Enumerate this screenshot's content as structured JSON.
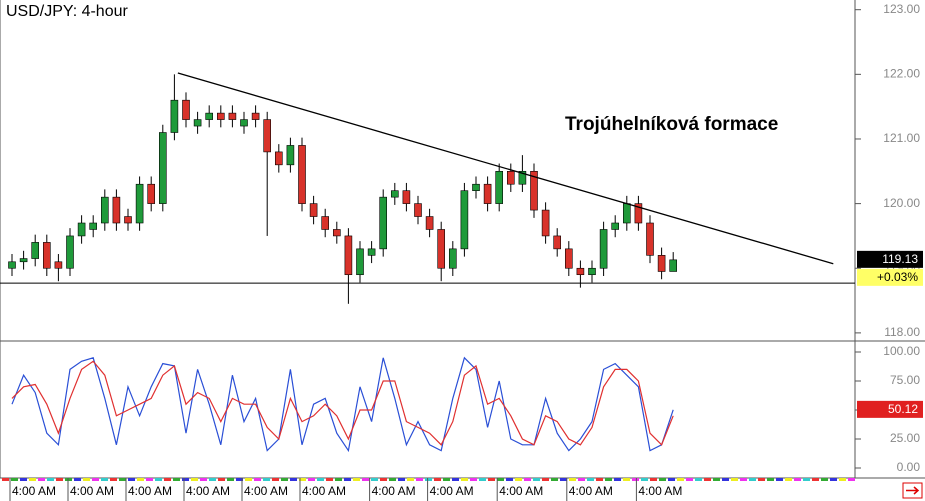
{
  "chart_data": [
    {
      "type": "candlestick",
      "title": "USD/JPY: 4-hour",
      "annotation": "Trojúhelníková formace",
      "categories": [
        "4:00 AM",
        null,
        null,
        null,
        null,
        "4:00 AM",
        null,
        null,
        null,
        null,
        "4:00 AM",
        null,
        null,
        null,
        null,
        "4:00 AM",
        null,
        null,
        null,
        null,
        "4:00 AM",
        null,
        null,
        null,
        null,
        "4:00 AM",
        null,
        null,
        null,
        null,
        null,
        "4:00 AM",
        null,
        null,
        null,
        null,
        "4:00 AM",
        null,
        null,
        null,
        null,
        null,
        "4:00 AM",
        null,
        null,
        null,
        null,
        null,
        "4:00 AM",
        null,
        null,
        null,
        null,
        null,
        "4:00 AM",
        null,
        null,
        null
      ],
      "open": [
        119.0,
        119.1,
        119.15,
        119.4,
        119.1,
        119.0,
        119.5,
        119.6,
        119.7,
        120.1,
        119.8,
        119.7,
        120.3,
        120.0,
        121.1,
        121.6,
        121.2,
        121.3,
        121.4,
        121.4,
        121.2,
        121.4,
        121.3,
        120.8,
        120.6,
        120.9,
        120.0,
        119.8,
        119.6,
        119.5,
        118.9,
        119.2,
        119.3,
        120.1,
        120.2,
        120.0,
        119.8,
        119.6,
        119.0,
        119.3,
        120.2,
        120.3,
        120.0,
        120.5,
        120.3,
        120.5,
        119.9,
        119.5,
        119.3,
        119.0,
        118.9,
        119.0,
        119.6,
        119.7,
        120.0,
        119.7,
        119.2,
        118.95
      ],
      "high": [
        119.22,
        119.27,
        119.52,
        119.52,
        119.22,
        119.62,
        119.82,
        119.82,
        120.22,
        120.22,
        119.92,
        120.42,
        120.42,
        121.22,
        122.0,
        121.72,
        121.42,
        121.52,
        121.52,
        121.52,
        121.42,
        121.52,
        121.42,
        120.92,
        121.02,
        121.02,
        120.12,
        119.92,
        119.72,
        119.62,
        119.42,
        119.42,
        120.22,
        120.32,
        120.32,
        120.12,
        119.92,
        119.72,
        119.42,
        120.32,
        120.42,
        120.42,
        120.62,
        120.62,
        120.75,
        120.62,
        120.02,
        119.62,
        119.42,
        119.12,
        119.12,
        119.72,
        119.82,
        120.12,
        120.12,
        119.82,
        119.32,
        119.25
      ],
      "low": [
        118.88,
        118.98,
        119.03,
        118.88,
        118.8,
        118.88,
        119.38,
        119.48,
        119.58,
        119.58,
        119.58,
        119.58,
        119.88,
        119.88,
        120.98,
        121.18,
        121.08,
        121.18,
        121.18,
        121.18,
        121.08,
        121.18,
        119.5,
        120.48,
        120.48,
        119.88,
        119.68,
        119.48,
        119.38,
        118.45,
        118.78,
        119.08,
        119.18,
        119.98,
        119.88,
        119.68,
        119.48,
        118.8,
        118.88,
        119.18,
        120.08,
        119.88,
        119.88,
        120.18,
        120.18,
        119.78,
        119.38,
        119.18,
        118.88,
        118.7,
        118.78,
        118.88,
        119.48,
        119.58,
        119.58,
        119.08,
        118.83,
        118.95
      ],
      "close": [
        119.1,
        119.15,
        119.4,
        119.0,
        119.0,
        119.5,
        119.7,
        119.7,
        120.1,
        119.7,
        119.7,
        120.3,
        120.0,
        121.1,
        121.6,
        121.3,
        121.3,
        121.4,
        121.3,
        121.3,
        121.3,
        121.3,
        120.8,
        120.6,
        120.9,
        120.0,
        119.8,
        119.6,
        119.5,
        118.9,
        119.3,
        119.3,
        120.1,
        120.2,
        120.0,
        119.8,
        119.6,
        119.0,
        119.3,
        120.2,
        120.3,
        120.0,
        120.5,
        120.3,
        120.5,
        119.9,
        119.5,
        119.3,
        119.0,
        118.9,
        119.0,
        119.6,
        119.7,
        120.0,
        119.7,
        119.2,
        118.95,
        119.13
      ],
      "up_color": "#1f9a3a",
      "down_color": "#d8322a",
      "change": {
        "value": 0.03,
        "label": "+0.03%"
      },
      "trendline": {
        "x": [
          14.3,
          70.8
        ],
        "y": [
          122.02,
          119.07
        ]
      },
      "support_level": 118.77,
      "ylim": [
        117.89,
        123.15
      ],
      "yticks": [
        {
          "value": 118,
          "label": "118.00"
        },
        {
          "value": 119,
          "label": "119.00"
        },
        {
          "value": 120,
          "label": "120.00"
        },
        {
          "value": 121,
          "label": "121.00"
        },
        {
          "value": 122,
          "label": "122.00"
        },
        {
          "value": 123,
          "label": "123.00"
        }
      ]
    },
    {
      "type": "line",
      "series": [
        {
          "name": "%K",
          "color": "#2a4fd6",
          "values": [
            55,
            80,
            65,
            30,
            20,
            85,
            92,
            95,
            60,
            20,
            70,
            45,
            70,
            90,
            88,
            30,
            85,
            55,
            20,
            80,
            40,
            60,
            15,
            25,
            85,
            20,
            55,
            60,
            30,
            15,
            70,
            40,
            95,
            60,
            20,
            40,
            20,
            15,
            60,
            95,
            85,
            35,
            75,
            25,
            20,
            20,
            60,
            30,
            15,
            25,
            40,
            85,
            90,
            80,
            70,
            15,
            20,
            50.12
          ]
        },
        {
          "name": "%D",
          "color": "#e03030",
          "values": [
            60,
            70,
            72,
            55,
            30,
            60,
            85,
            92,
            80,
            45,
            50,
            55,
            60,
            80,
            88,
            55,
            65,
            60,
            40,
            60,
            55,
            55,
            35,
            25,
            60,
            40,
            45,
            55,
            45,
            25,
            50,
            50,
            75,
            75,
            40,
            35,
            30,
            20,
            40,
            80,
            88,
            55,
            60,
            45,
            25,
            20,
            45,
            40,
            25,
            20,
            35,
            70,
            85,
            85,
            75,
            30,
            20,
            45
          ]
        }
      ],
      "ylim": [
        0,
        100
      ],
      "yticks": [
        {
          "value": 0,
          "label": "0.00"
        },
        {
          "value": 25,
          "label": "25.00"
        },
        {
          "value": 50,
          "label": "50.00"
        },
        {
          "value": 75,
          "label": "75.00"
        },
        {
          "value": 100,
          "label": "100.00"
        }
      ]
    }
  ]
}
